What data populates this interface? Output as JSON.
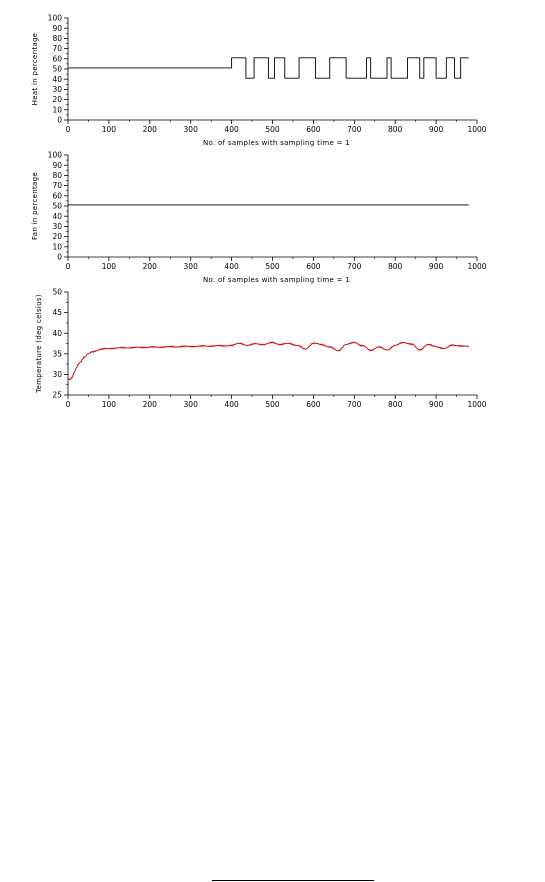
{
  "chart_data": [
    {
      "type": "line",
      "title": "",
      "xlabel": "No. of samples with sampling time = 1",
      "ylabel": "Heat in percentage",
      "xlim": [
        0,
        1000
      ],
      "ylim": [
        0,
        100
      ],
      "x_ticks": [
        0,
        100,
        200,
        300,
        400,
        500,
        600,
        700,
        800,
        900,
        1000
      ],
      "y_ticks": [
        0,
        10,
        20,
        30,
        40,
        50,
        60,
        70,
        80,
        90,
        100
      ],
      "grid": false,
      "series": [
        {
          "color": "#000000",
          "x": [
            0,
            400,
            400,
            435,
            435,
            455,
            455,
            490,
            490,
            505,
            505,
            530,
            530,
            565,
            565,
            605,
            605,
            640,
            640,
            680,
            680,
            730,
            730,
            740,
            740,
            780,
            780,
            790,
            790,
            830,
            830,
            860,
            860,
            870,
            870,
            900,
            900,
            925,
            925,
            945,
            945,
            960,
            960,
            980
          ],
          "values": [
            51,
            51,
            61,
            61,
            41,
            41,
            61,
            61,
            41,
            41,
            61,
            61,
            41,
            41,
            61,
            61,
            41,
            41,
            61,
            61,
            41,
            41,
            61,
            61,
            41,
            41,
            61,
            61,
            41,
            41,
            61,
            61,
            41,
            41,
            61,
            61,
            41,
            41,
            61,
            61,
            41,
            41,
            61,
            61
          ]
        }
      ]
    },
    {
      "type": "line",
      "title": "",
      "xlabel": "No. of samples with sampling time = 1",
      "ylabel": "Fan in percentage",
      "xlim": [
        0,
        1000
      ],
      "ylim": [
        0,
        100
      ],
      "x_ticks": [
        0,
        100,
        200,
        300,
        400,
        500,
        600,
        700,
        800,
        900,
        1000
      ],
      "y_ticks": [
        0,
        10,
        20,
        30,
        40,
        50,
        60,
        70,
        80,
        90,
        100
      ],
      "grid": false,
      "series": [
        {
          "color": "#000000",
          "x": [
            0,
            980
          ],
          "values": [
            51,
            51
          ]
        }
      ]
    },
    {
      "type": "line",
      "title": "",
      "xlabel": "",
      "ylabel": "Temperature (deg celsius)",
      "xlim": [
        0,
        1000
      ],
      "ylim": [
        25,
        50
      ],
      "x_ticks": [
        0,
        100,
        200,
        300,
        400,
        500,
        600,
        700,
        800,
        900,
        1000
      ],
      "y_ticks": [
        25,
        30,
        35,
        40,
        45,
        50
      ],
      "grid": false,
      "series": [
        {
          "color": "#cc0000",
          "x": [
            0,
            5,
            10,
            15,
            20,
            25,
            30,
            40,
            50,
            60,
            70,
            80,
            100,
            120,
            150,
            200,
            250,
            300,
            350,
            400,
            420,
            440,
            460,
            480,
            500,
            520,
            540,
            560,
            580,
            600,
            620,
            640,
            660,
            680,
            700,
            720,
            740,
            760,
            780,
            800,
            820,
            840,
            860,
            880,
            900,
            920,
            940,
            960,
            980
          ],
          "values": [
            29,
            28.8,
            29.2,
            30.5,
            31.5,
            32.4,
            33.1,
            34.2,
            35.0,
            35.5,
            35.8,
            36.1,
            36.3,
            36.4,
            36.5,
            36.6,
            36.7,
            36.8,
            36.9,
            37.0,
            37.6,
            37.0,
            37.5,
            37.2,
            37.8,
            37.2,
            37.6,
            37.0,
            36.2,
            37.5,
            37.3,
            36.6,
            35.8,
            37.2,
            37.8,
            36.9,
            35.9,
            36.6,
            36.0,
            37.0,
            37.8,
            37.3,
            36.0,
            37.2,
            36.8,
            36.2,
            37.2,
            36.8,
            36.9
          ]
        }
      ]
    }
  ]
}
